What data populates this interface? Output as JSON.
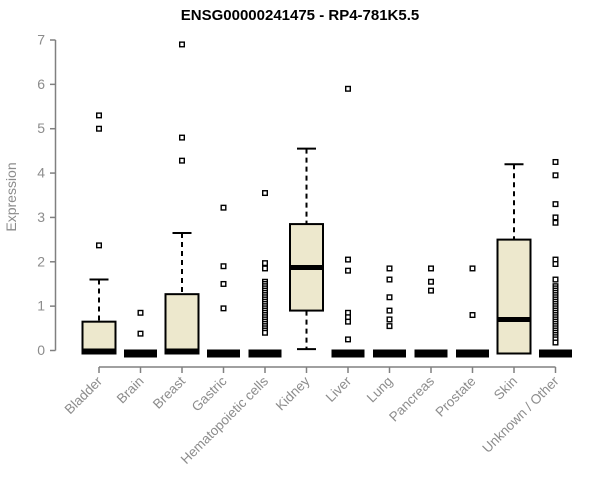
{
  "chart_data": {
    "type": "boxplot",
    "title": "ENSG00000241475 - RP4-781K5.5",
    "ylabel": "Expression",
    "ylim": [
      0,
      7
    ],
    "yticks": [
      0,
      1,
      2,
      3,
      4,
      5,
      6,
      7
    ],
    "grid": false,
    "legend": "none",
    "categories": [
      "Bladder",
      "Brain",
      "Breast",
      "Gastric",
      "Hematopoietic cells",
      "Kidney",
      "Liver",
      "Lung",
      "Pancreas",
      "Prostate",
      "Skin",
      "Unknown / Other"
    ],
    "series": [
      {
        "name": "Bladder",
        "collapsed": false,
        "q1": 0.02,
        "median": 0.05,
        "q3": 0.65,
        "whisker_low": 0.02,
        "whisker_high": 1.6,
        "outliers": [
          5.3,
          5.0,
          2.37
        ]
      },
      {
        "name": "Brain",
        "collapsed": true,
        "q1": 0,
        "median": 0.02,
        "q3": 0.05,
        "whisker_low": 0,
        "whisker_high": 0.05,
        "outliers": [
          0.85,
          0.38
        ]
      },
      {
        "name": "Breast",
        "collapsed": false,
        "q1": 0.02,
        "median": 0.05,
        "q3": 1.27,
        "whisker_low": 0.02,
        "whisker_high": 2.65,
        "outliers": [
          6.9,
          4.8,
          4.28
        ]
      },
      {
        "name": "Gastric",
        "collapsed": true,
        "q1": 0,
        "median": 0.02,
        "q3": 0.05,
        "whisker_low": 0,
        "whisker_high": 0.05,
        "outliers": [
          3.22,
          1.9,
          1.5,
          0.95
        ]
      },
      {
        "name": "Hematopoietic cells",
        "collapsed": true,
        "q1": 0,
        "median": 0.02,
        "q3": 0.05,
        "whisker_low": 0,
        "whisker_high": 0.05,
        "outliers": [
          3.55,
          1.97,
          1.85,
          1.55,
          1.5,
          1.45,
          1.4,
          1.35,
          1.3,
          1.25,
          1.2,
          1.15,
          1.1,
          1.05,
          1.0,
          0.95,
          0.9,
          0.85,
          0.8,
          0.75,
          0.7,
          0.65,
          0.6,
          0.55,
          0.5,
          0.45,
          0.4
        ]
      },
      {
        "name": "Kidney",
        "collapsed": false,
        "q1": 0.9,
        "median": 1.87,
        "q3": 2.85,
        "whisker_low": 0.03,
        "whisker_high": 4.55,
        "outliers": []
      },
      {
        "name": "Liver",
        "collapsed": true,
        "q1": 0,
        "median": 0.02,
        "q3": 0.05,
        "whisker_low": 0,
        "whisker_high": 0.05,
        "outliers": [
          5.9,
          2.05,
          1.8,
          0.85,
          0.75,
          0.65,
          0.25
        ]
      },
      {
        "name": "Lung",
        "collapsed": true,
        "q1": 0,
        "median": 0.02,
        "q3": 0.05,
        "whisker_low": 0,
        "whisker_high": 0.05,
        "outliers": [
          1.85,
          1.6,
          1.2,
          0.9,
          0.7,
          0.55
        ]
      },
      {
        "name": "Pancreas",
        "collapsed": true,
        "q1": 0,
        "median": 0.02,
        "q3": 0.05,
        "whisker_low": 0,
        "whisker_high": 0.05,
        "outliers": [
          1.85,
          1.55,
          1.35
        ]
      },
      {
        "name": "Prostate",
        "collapsed": true,
        "q1": 0,
        "median": 0.02,
        "q3": 0.05,
        "whisker_low": 0,
        "whisker_high": 0.05,
        "outliers": [
          1.85,
          0.8
        ]
      },
      {
        "name": "Skin",
        "collapsed": false,
        "q1": 0.02,
        "median": 0.7,
        "q3": 2.5,
        "whisker_low": 0.02,
        "whisker_high": 4.2,
        "outliers": []
      },
      {
        "name": "Unknown / Other",
        "collapsed": true,
        "q1": 0,
        "median": 0.02,
        "q3": 0.05,
        "whisker_low": 0,
        "whisker_high": 0.05,
        "outliers": [
          4.25,
          3.95,
          3.3,
          3.0,
          2.88,
          2.05,
          1.95,
          1.6,
          1.45,
          1.4,
          1.35,
          1.3,
          1.25,
          1.2,
          1.15,
          1.1,
          1.05,
          1.0,
          0.95,
          0.9,
          0.85,
          0.8,
          0.75,
          0.7,
          0.65,
          0.6,
          0.55,
          0.5,
          0.45,
          0.4,
          0.35,
          0.3,
          0.25,
          0.18
        ]
      }
    ],
    "colors": {
      "box_fill": "#EDE8CD",
      "box_stroke": "#000000",
      "median": "#000000",
      "whisker": "#000000",
      "outlier_stroke": "#000000",
      "axis": "#808080",
      "tick_text": "#8C8C8C",
      "title_text": "#000000",
      "background": "#FFFFFF"
    }
  }
}
